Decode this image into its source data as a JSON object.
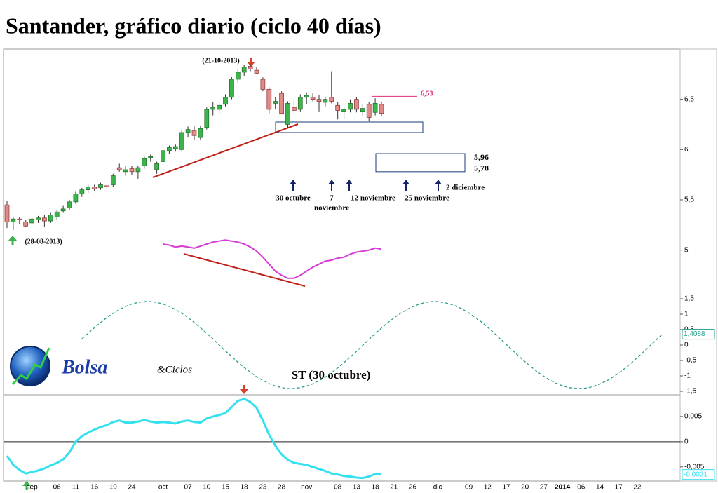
{
  "chart_data": [
    {
      "type": "candlestick",
      "title": "Santander, gráfico diario (ciclo 40 días)",
      "color_up": "#3cb44b",
      "color_down": "#e08a8a",
      "open": [
        5.45,
        5.28,
        5.31,
        5.28,
        5.27,
        5.3,
        5.32,
        5.29,
        5.33,
        5.39,
        5.42,
        5.48,
        5.56,
        5.6,
        5.63,
        5.62,
        5.64,
        5.65,
        5.82,
        5.78,
        5.81,
        5.78,
        5.84,
        5.92,
        5.8,
        5.88,
        5.99,
        6.01,
        6.0,
        6.17,
        6.19,
        6.12,
        6.22,
        6.4,
        6.4,
        6.45,
        6.52,
        6.7,
        6.77,
        6.83,
        6.79,
        6.7,
        6.6,
        6.46,
        6.56,
        6.25,
        6.42,
        6.4,
        6.52,
        6.52,
        6.5,
        6.47,
        6.52,
        6.44,
        6.38,
        6.4,
        6.5,
        6.38,
        6.45,
        6.37,
        6.45
      ],
      "high": [
        5.49,
        5.33,
        5.33,
        5.3,
        5.33,
        5.34,
        5.35,
        5.37,
        5.4,
        5.44,
        5.5,
        5.58,
        5.62,
        5.65,
        5.65,
        5.67,
        5.66,
        5.76,
        5.86,
        5.84,
        5.84,
        5.84,
        5.93,
        5.95,
        5.88,
        6.01,
        6.04,
        6.05,
        6.19,
        6.23,
        6.23,
        6.24,
        6.42,
        6.47,
        6.46,
        6.55,
        6.72,
        6.8,
        6.84,
        6.85,
        6.82,
        6.72,
        6.62,
        6.52,
        6.58,
        6.48,
        6.5,
        6.55,
        6.57,
        6.56,
        6.54,
        6.52,
        6.78,
        6.47,
        6.42,
        6.5,
        6.52,
        6.45,
        6.47,
        6.51,
        6.48
      ],
      "low": [
        5.22,
        5.2,
        5.26,
        5.23,
        5.25,
        5.27,
        5.23,
        5.27,
        5.3,
        5.37,
        5.4,
        5.46,
        5.53,
        5.57,
        5.59,
        5.6,
        5.61,
        5.63,
        5.78,
        5.74,
        5.75,
        5.71,
        5.81,
        5.88,
        5.76,
        5.86,
        5.96,
        5.98,
        5.98,
        6.12,
        6.1,
        6.1,
        6.2,
        6.34,
        6.36,
        6.43,
        6.5,
        6.66,
        6.73,
        6.78,
        6.75,
        6.58,
        6.36,
        6.4,
        6.35,
        6.22,
        6.36,
        6.38,
        6.45,
        6.48,
        6.38,
        6.43,
        6.46,
        6.3,
        6.31,
        6.37,
        6.37,
        6.33,
        6.28,
        6.34,
        6.33
      ],
      "close": [
        5.28,
        5.31,
        5.3,
        5.24,
        5.31,
        5.32,
        5.29,
        5.35,
        5.38,
        5.41,
        5.48,
        5.56,
        5.6,
        5.63,
        5.61,
        5.65,
        5.63,
        5.74,
        5.8,
        5.8,
        5.78,
        5.82,
        5.91,
        5.93,
        5.86,
        5.99,
        6.02,
        6.03,
        6.17,
        6.2,
        6.14,
        6.21,
        6.4,
        6.42,
        6.44,
        6.52,
        6.7,
        6.77,
        6.82,
        6.8,
        6.76,
        6.6,
        6.4,
        6.48,
        6.36,
        6.46,
        6.39,
        6.52,
        6.54,
        6.5,
        6.48,
        6.5,
        6.48,
        6.39,
        6.4,
        6.46,
        6.4,
        6.41,
        6.32,
        6.46,
        6.36
      ],
      "overlay": {
        "color": "#d63bd6",
        "values": [
          null,
          null,
          null,
          null,
          null,
          null,
          null,
          null,
          null,
          null,
          null,
          null,
          null,
          null,
          null,
          null,
          null,
          null,
          null,
          null,
          null,
          null,
          null,
          null,
          null,
          5.06,
          5.05,
          5.03,
          5.04,
          5.03,
          5.02,
          5.04,
          5.06,
          5.08,
          5.09,
          5.1,
          5.09,
          5.08,
          5.06,
          5.03,
          4.99,
          4.93,
          4.86,
          4.79,
          4.75,
          4.72,
          4.72,
          4.75,
          4.79,
          4.83,
          4.86,
          4.89,
          4.9,
          4.92,
          4.93,
          4.96,
          4.98,
          4.99,
          5.0,
          5.02,
          5.01
        ]
      },
      "ylim": [
        3.56,
        7.0
      ],
      "yticks": [
        {
          "value": 6.5,
          "label": "6,5"
        },
        6,
        {
          "value": 5.5,
          "label": "5,5"
        },
        5
      ],
      "resistance": {
        "value": 6.53,
        "label": "6,53"
      },
      "target_zone": [
        {
          "value": 5.96,
          "label": "5,96"
        },
        {
          "value": 5.78,
          "label": "5,78"
        }
      ],
      "marked_dates": [
        "(21-10-2013)",
        "(28-08-2013)"
      ],
      "cycle_dates": [
        [
          "30 octubre"
        ],
        [
          "7",
          "noviembre"
        ],
        [
          "12 noviembre"
        ],
        [
          "25 noviembre"
        ],
        [
          "2 diciembre"
        ]
      ]
    },
    {
      "type": "line",
      "dashed": true,
      "annotation": "ST (30 octubre)",
      "logo": [
        "Bolsa",
        "&Ciclos"
      ],
      "last_label": "1,4088",
      "series": [
        {
          "color": "#2a9d8f",
          "values": [
            null,
            null,
            null,
            null,
            null,
            null,
            null,
            null,
            null,
            null,
            null,
            null,
            0.2,
            0.38,
            0.56,
            0.73,
            0.89,
            1.03,
            1.15,
            1.25,
            1.33,
            1.38,
            1.41,
            1.41,
            1.38,
            1.33,
            1.25,
            1.15,
            1.03,
            0.89,
            0.73,
            0.56,
            0.38,
            0.2,
            0,
            -0.19,
            -0.37,
            -0.56,
            -0.73,
            -0.88,
            -1.03,
            -1.15,
            -1.25,
            -1.33,
            -1.38,
            -1.41,
            -1.41,
            -1.38,
            -1.33,
            -1.26,
            -1.16,
            -1.04,
            -0.9,
            -0.74,
            -0.57,
            -0.39,
            -0.21,
            -0.01,
            0.18,
            0.37,
            0.55,
            0.72,
            0.88,
            1.02,
            1.14,
            1.24,
            1.32,
            1.38,
            1.41,
            1.41,
            1.38,
            1.33,
            1.26,
            1.16,
            1.04,
            0.9,
            0.75,
            0.58,
            0.4,
            0.21,
            0.02,
            -0.17,
            -0.36,
            -0.54,
            -0.71,
            -0.87,
            -1.01,
            -1.14,
            -1.24,
            -1.32,
            -1.38,
            -1.4,
            -1.41,
            -1.39,
            -1.34,
            -1.26,
            -1.17,
            -1.05,
            -0.91,
            -0.76,
            -0.59,
            -0.41,
            -0.22,
            -0.03,
            0.16,
            0.35
          ]
        }
      ],
      "ylim": [
        -1.5,
        1.5
      ],
      "yticks": [
        {
          "value": 1.5,
          "label": "1,5"
        },
        1,
        {
          "value": 0.5,
          "label": "0,5"
        },
        0,
        {
          "value": -0.5,
          "label": "-0,5"
        },
        -1,
        {
          "value": -1.5,
          "label": "-1,5"
        }
      ]
    },
    {
      "type": "line",
      "zero_line": true,
      "last_label": "-0,0021",
      "categories": [
        null,
        null,
        null,
        null,
        "sep",
        null,
        null,
        null,
        "06",
        null,
        null,
        "11",
        null,
        null,
        "16",
        null,
        null,
        "19",
        null,
        null,
        "24",
        null,
        null,
        null,
        null,
        "oct",
        null,
        null,
        null,
        "07",
        null,
        null,
        "10",
        null,
        null,
        "15",
        null,
        null,
        "18",
        null,
        null,
        "23",
        null,
        null,
        "28",
        null,
        null,
        null,
        "nov",
        null,
        null,
        null,
        null,
        "08",
        null,
        null,
        "13",
        null,
        null,
        "18",
        null,
        null,
        "21",
        null,
        null,
        "26",
        null,
        null,
        null,
        "dic",
        null,
        null,
        null,
        null,
        "09",
        null,
        null,
        "12",
        null,
        null,
        "17",
        null,
        null,
        "20",
        null,
        null,
        "27",
        null,
        null,
        "2014",
        null,
        null,
        "06",
        null,
        null,
        "14",
        null,
        null,
        "17",
        null,
        null,
        "22",
        null,
        null,
        null,
        null
      ],
      "series": [
        {
          "color": "#33e0f0",
          "values": [
            -0.0028,
            -0.0046,
            -0.0056,
            -0.0063,
            -0.006,
            -0.0057,
            -0.0053,
            -0.0047,
            -0.0042,
            -0.0035,
            -0.0021,
            0,
            0.0011,
            0.0018,
            0.0024,
            0.0029,
            0.0033,
            0.0039,
            0.0042,
            0.0038,
            0.0038,
            0.004,
            0.0043,
            0.004,
            0.0038,
            0.0039,
            0.0038,
            0.0036,
            0.004,
            0.0042,
            0.0039,
            0.0038,
            0.0046,
            0.005,
            0.0053,
            0.0057,
            0.0069,
            0.0081,
            0.0085,
            0.0079,
            0.0067,
            0.0042,
            0.0014,
            -0.0008,
            -0.0025,
            -0.0036,
            -0.0042,
            -0.0044,
            -0.0046,
            -0.005,
            -0.0054,
            -0.0058,
            -0.0063,
            -0.0065,
            -0.0068,
            -0.0069,
            -0.0071,
            -0.0072,
            -0.0069,
            -0.0064,
            -0.0065,
            null,
            null,
            null,
            null,
            null,
            null,
            null,
            null,
            null,
            null,
            null,
            null,
            null,
            null,
            null,
            null,
            null,
            null,
            null,
            null,
            null,
            null,
            null,
            null,
            null,
            null,
            null,
            null,
            null,
            null,
            null,
            null,
            null,
            null,
            null,
            null,
            null,
            null,
            null,
            null,
            null,
            null,
            null,
            null,
            null
          ]
        }
      ],
      "ylim": [
        -0.0078,
        0.0093
      ],
      "yticks": [
        {
          "value": 0.005,
          "label": "0,005"
        },
        0,
        {
          "value": -0.005,
          "label": "-0,005"
        }
      ]
    }
  ]
}
